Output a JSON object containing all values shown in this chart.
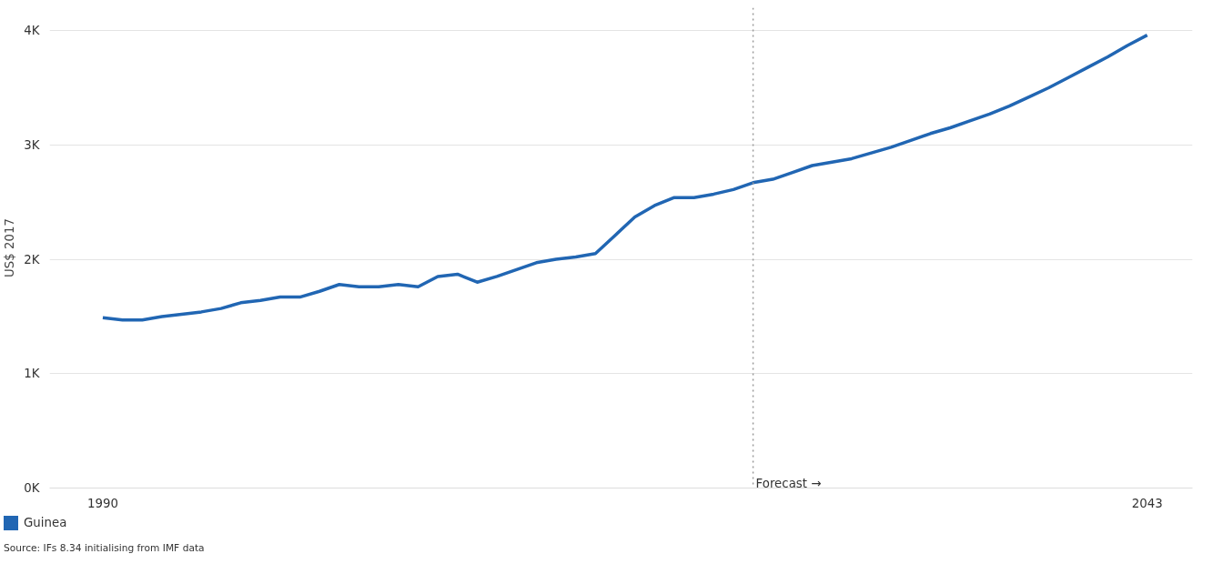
{
  "chart_data": {
    "type": "line",
    "ylabel": "US$ 2017",
    "x": [
      1990,
      1991,
      1992,
      1993,
      1994,
      1995,
      1996,
      1997,
      1998,
      1999,
      2000,
      2001,
      2002,
      2003,
      2004,
      2005,
      2006,
      2007,
      2008,
      2009,
      2010,
      2011,
      2012,
      2013,
      2014,
      2015,
      2016,
      2017,
      2018,
      2019,
      2020,
      2021,
      2022,
      2023,
      2024,
      2025,
      2026,
      2027,
      2028,
      2029,
      2030,
      2031,
      2032,
      2033,
      2034,
      2035,
      2036,
      2037,
      2038,
      2039,
      2040,
      2041,
      2042,
      2043
    ],
    "series": [
      {
        "name": "Guinea",
        "color": "#2166b3",
        "values": [
          1490,
          1470,
          1470,
          1500,
          1520,
          1540,
          1570,
          1620,
          1640,
          1670,
          1670,
          1720,
          1780,
          1760,
          1760,
          1780,
          1760,
          1850,
          1870,
          1800,
          1850,
          1910,
          1970,
          2000,
          2020,
          2050,
          2210,
          2370,
          2470,
          2540,
          2540,
          2570,
          2610,
          2670,
          2700,
          2760,
          2820,
          2850,
          2880,
          2930,
          2980,
          3040,
          3100,
          3150,
          3210,
          3270,
          3340,
          3420,
          3500,
          3590,
          3680,
          3770,
          3870,
          3960
        ]
      }
    ],
    "xlim": [
      1987.3,
      2045.3
    ],
    "ylim": [
      0,
      4200
    ],
    "xticks": [
      1990,
      2043
    ],
    "yticks": [
      {
        "value": 0,
        "label": "0K"
      },
      {
        "value": 1000,
        "label": "1K"
      },
      {
        "value": 2000,
        "label": "2K"
      },
      {
        "value": 3000,
        "label": "3K"
      },
      {
        "value": 4000,
        "label": "4K"
      }
    ],
    "ref_lines": [
      {
        "axis": "x",
        "value": 2023,
        "label": "Forecast →",
        "color": "#999999",
        "line_style": "dotted"
      }
    ],
    "grid": "y",
    "legend": "bottom",
    "annotations": [
      "Source: IFs 8.34 initialising from IMF data"
    ]
  }
}
